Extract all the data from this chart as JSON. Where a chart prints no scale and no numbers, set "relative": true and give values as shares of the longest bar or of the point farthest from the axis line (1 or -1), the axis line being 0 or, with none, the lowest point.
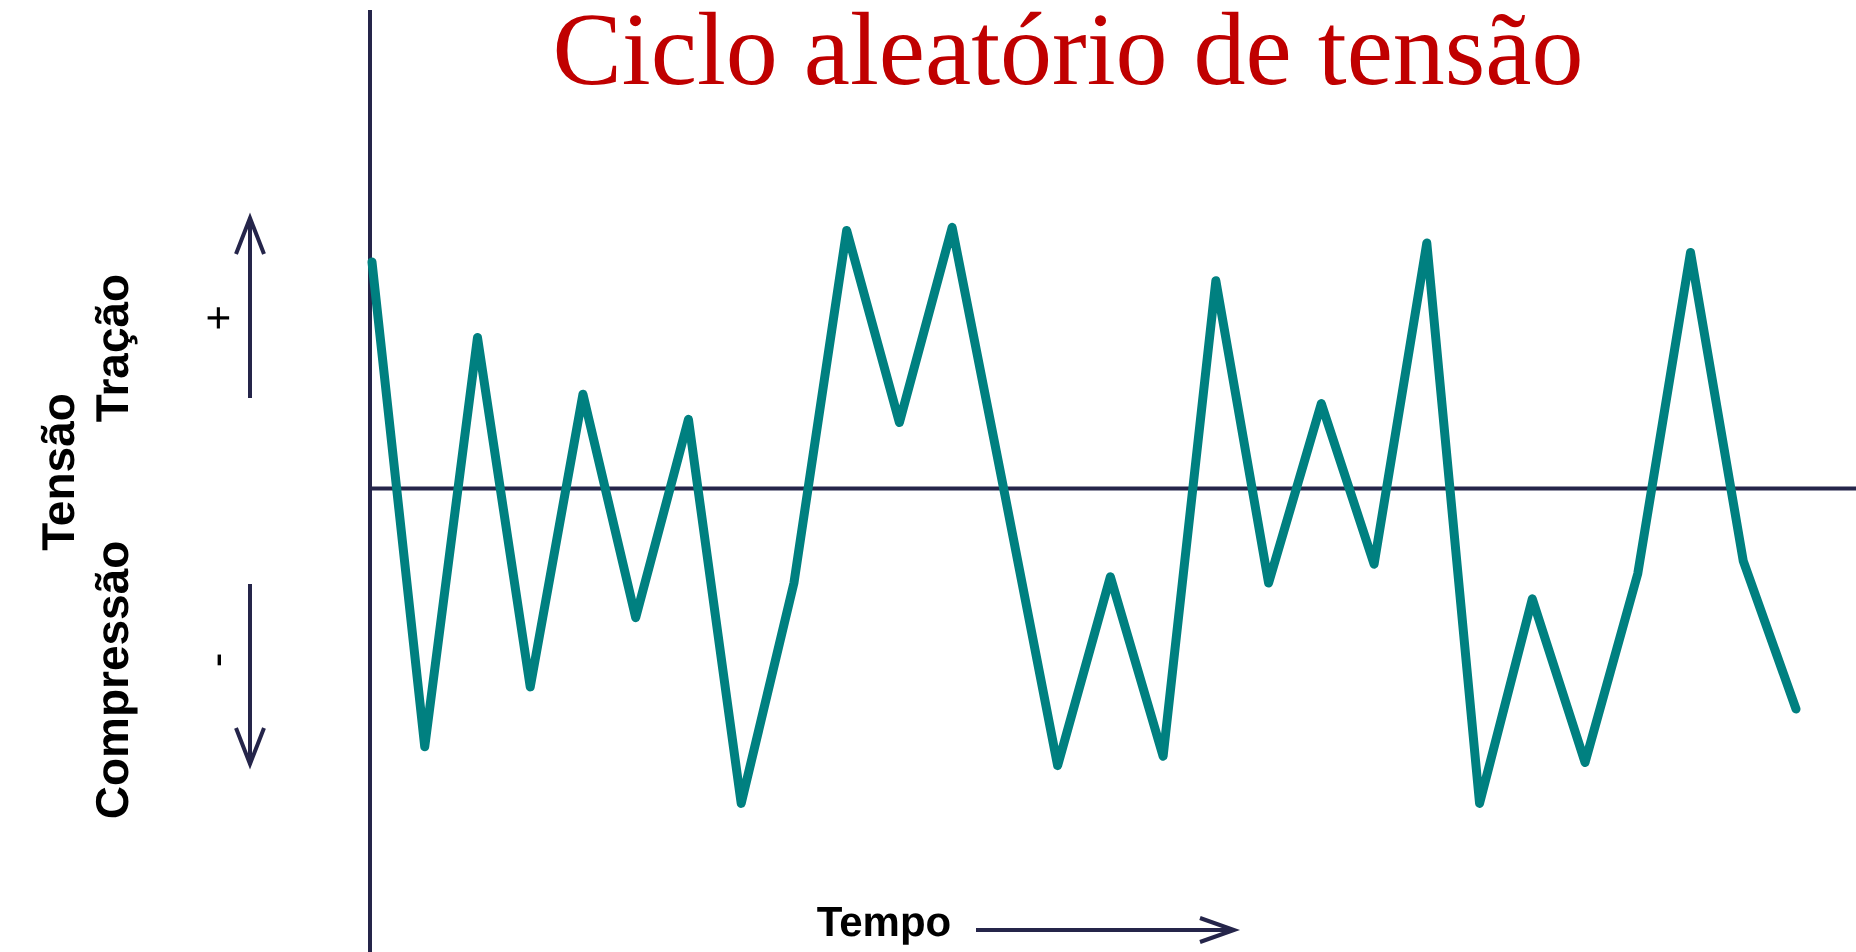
{
  "chart_data": {
    "type": "line",
    "title": "Ciclo aleatório de tensão",
    "xlabel": "Tempo",
    "annotations": [
      "Tensão",
      "Tração",
      "+",
      "Compressão",
      "-"
    ],
    "relative": true,
    "categories": [
      null,
      null,
      null,
      null,
      null,
      null,
      null,
      null,
      null,
      null,
      null,
      null,
      null,
      null,
      null,
      null,
      null,
      null,
      null,
      null,
      null,
      null,
      null,
      null,
      null,
      null,
      null,
      null
    ],
    "series": [
      {
        "color": "#008080",
        "values": [
          0.72,
          -0.82,
          0.48,
          -0.63,
          0.3,
          -0.41,
          0.22,
          -1,
          -0.3,
          0.82,
          0.21,
          0.83,
          -0.02,
          -0.88,
          -0.28,
          -0.85,
          0.66,
          -0.3,
          0.27,
          -0.24,
          0.78,
          -1,
          -0.35,
          -0.87,
          -0.27,
          0.75,
          -0.23,
          -0.7
        ]
      }
    ]
  }
}
